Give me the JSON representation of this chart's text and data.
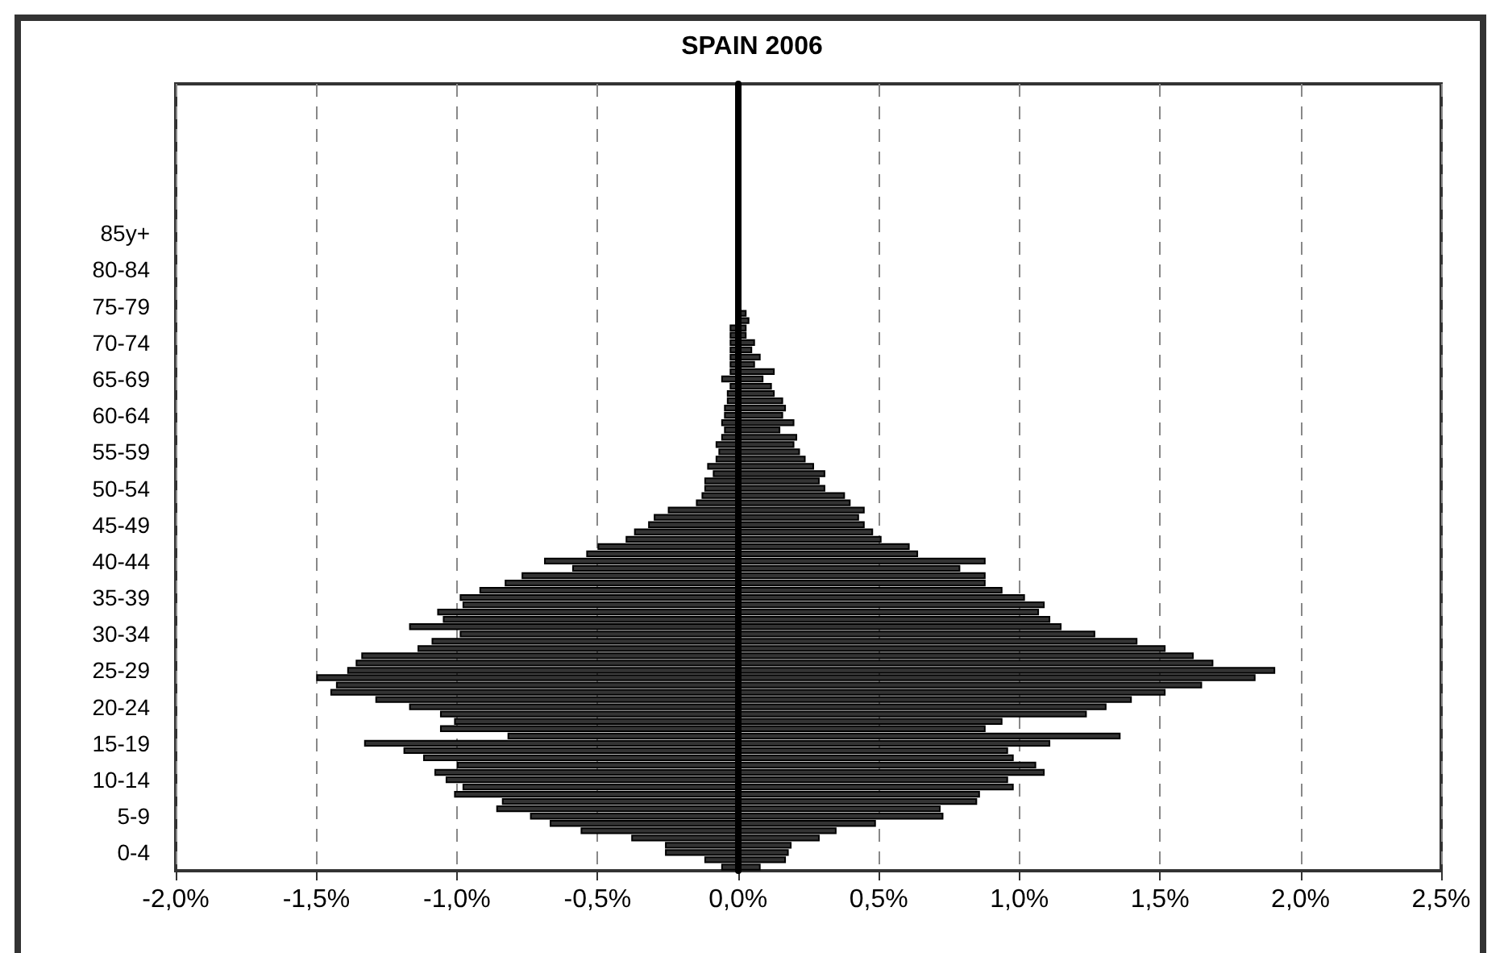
{
  "chart_data": {
    "type": "bar",
    "orientation": "horizontal",
    "title": "SPAIN 2006",
    "stacked": true,
    "categories": [
      null,
      null,
      null,
      null,
      null,
      null,
      null,
      null,
      null,
      null,
      null,
      null,
      null,
      null,
      null,
      null,
      null,
      null,
      null,
      null,
      "85y+",
      null,
      null,
      null,
      null,
      "80-84",
      null,
      null,
      null,
      null,
      "75-79",
      null,
      null,
      null,
      null,
      "70-74",
      null,
      null,
      null,
      null,
      "65-69",
      null,
      null,
      null,
      null,
      "60-64",
      null,
      null,
      null,
      null,
      "55-59",
      null,
      null,
      null,
      null,
      "50-54",
      null,
      null,
      null,
      null,
      "45-49",
      null,
      null,
      null,
      null,
      "40-44",
      null,
      null,
      null,
      null,
      "35-39",
      null,
      null,
      null,
      null,
      "30-34",
      null,
      null,
      null,
      null,
      "25-29",
      null,
      null,
      null,
      null,
      "20-24",
      null,
      null,
      null,
      null,
      "15-19",
      null,
      null,
      null,
      null,
      "10-14",
      null,
      null,
      null,
      null,
      "5-9",
      null,
      null,
      null,
      null,
      "0-4",
      null,
      null
    ],
    "series": [
      {
        "color": "#333333",
        "values": [
          null,
          null,
          null,
          null,
          null,
          null,
          null,
          null,
          null,
          null,
          null,
          null,
          null,
          null,
          null,
          null,
          null,
          null,
          null,
          null,
          null,
          null,
          null,
          null,
          null,
          null,
          null,
          null,
          null,
          null,
          null,
          null,
          null,
          -0.03,
          -0.03,
          -0.03,
          -0.03,
          -0.03,
          -0.03,
          -0.03,
          -0.06,
          -0.03,
          -0.04,
          -0.04,
          -0.05,
          -0.05,
          -0.06,
          -0.05,
          -0.06,
          -0.08,
          -0.07,
          -0.08,
          -0.11,
          -0.09,
          -0.12,
          -0.12,
          -0.13,
          -0.15,
          -0.25,
          -0.3,
          -0.32,
          -0.37,
          -0.4,
          -0.5,
          -0.54,
          -0.69,
          -0.59,
          -0.77,
          -0.83,
          -0.92,
          -0.99,
          -0.98,
          -1.07,
          -1.05,
          -1.17,
          -0.99,
          -1.09,
          -1.14,
          -1.34,
          -1.36,
          -1.39,
          -1.5,
          -1.43,
          -1.45,
          -1.29,
          -1.17,
          -1.06,
          -1.01,
          -1.06,
          -0.82,
          -1.33,
          -1.19,
          -1.12,
          -1.0,
          -1.08,
          -1.04,
          -0.98,
          -1.01,
          -0.84,
          -0.86,
          -0.74,
          -0.67,
          -0.56,
          -0.38,
          -0.26,
          -0.26,
          -0.12,
          -0.06
        ]
      },
      {
        "color": "#333333",
        "values": [
          null,
          null,
          null,
          null,
          null,
          null,
          null,
          null,
          null,
          null,
          null,
          null,
          null,
          null,
          null,
          null,
          null,
          null,
          null,
          null,
          null,
          null,
          null,
          null,
          null,
          null,
          null,
          null,
          null,
          null,
          null,
          0.03,
          0.04,
          0.03,
          0.03,
          0.06,
          0.05,
          0.08,
          0.06,
          0.13,
          0.09,
          0.12,
          0.13,
          0.16,
          0.17,
          0.16,
          0.2,
          0.15,
          0.21,
          0.2,
          0.22,
          0.24,
          0.27,
          0.31,
          0.29,
          0.31,
          0.38,
          0.4,
          0.45,
          0.43,
          0.45,
          0.48,
          0.51,
          0.61,
          0.64,
          0.88,
          0.79,
          0.88,
          0.88,
          0.94,
          1.02,
          1.09,
          1.07,
          1.11,
          1.15,
          1.27,
          1.42,
          1.52,
          1.62,
          1.69,
          1.91,
          1.84,
          1.65,
          1.52,
          1.4,
          1.31,
          1.24,
          0.94,
          0.88,
          1.36,
          1.11,
          0.96,
          0.98,
          1.06,
          1.09,
          0.96,
          0.98,
          0.86,
          0.85,
          0.72,
          0.73,
          0.49,
          0.35,
          0.29,
          0.19,
          0.18,
          0.17,
          0.08
        ]
      }
    ],
    "xlim": [
      -2,
      2.5
    ],
    "xticks": [
      {
        "value": -2,
        "label": "-2,0%"
      },
      {
        "value": -1.5,
        "label": "-1,5%"
      },
      {
        "value": -1,
        "label": "-1,0%"
      },
      {
        "value": -0.5,
        "label": "-0,5%"
      },
      {
        "value": 0,
        "label": "0,0%"
      },
      {
        "value": 0.5,
        "label": "0,5%"
      },
      {
        "value": 1,
        "label": "1,0%"
      },
      {
        "value": 1.5,
        "label": "1,5%"
      },
      {
        "value": 2,
        "label": "2,0%"
      },
      {
        "value": 2.5,
        "label": "2,5%"
      }
    ],
    "grid": "x"
  }
}
